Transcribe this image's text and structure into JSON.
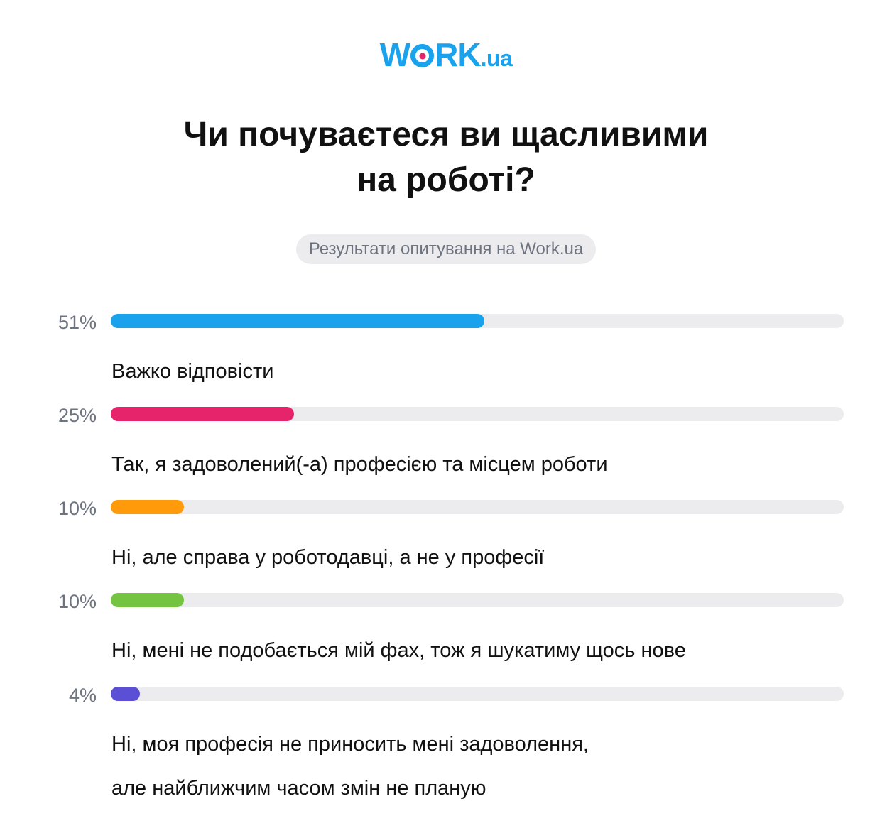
{
  "brand": {
    "logo_main": "W",
    "logo_rest": "RK",
    "logo_tld": ".ua",
    "primary_color": "#1aa3ec",
    "accent_color": "#e5246c"
  },
  "title_lines": [
    "Чи почуваєтеся ви щасливими",
    "на роботі?"
  ],
  "subtitle": "Результати опитування на Work.ua",
  "chart_data": {
    "type": "bar",
    "title": "Чи почуваєтеся ви щасливими на роботі?",
    "subtitle": "Результати опитування на Work.ua",
    "orientation": "horizontal",
    "ylim": [
      0,
      100
    ],
    "items": [
      {
        "percent_label": "51%",
        "value": 51,
        "color": "#1aa3ec",
        "label_lines": [
          "Важко відповісти"
        ]
      },
      {
        "percent_label": "25%",
        "value": 25,
        "color": "#e5246c",
        "label_lines": [
          "Так, я задоволений(-а) професією та місцем роботи"
        ]
      },
      {
        "percent_label": "10%",
        "value": 10,
        "color": "#ff9a0a",
        "label_lines": [
          "Ні, але справа у роботодавці, а не у професії"
        ]
      },
      {
        "percent_label": "10%",
        "value": 10,
        "color": "#74c442",
        "label_lines": [
          "Ні, мені не подобається мій фах, тож я шукатиму щось нове"
        ]
      },
      {
        "percent_label": "4%",
        "value": 4,
        "color": "#5b4fd6",
        "label_lines": [
          "Ні, моя професія не приносить мені задоволення,",
          "але найближчим часом змін не планую"
        ]
      }
    ]
  }
}
